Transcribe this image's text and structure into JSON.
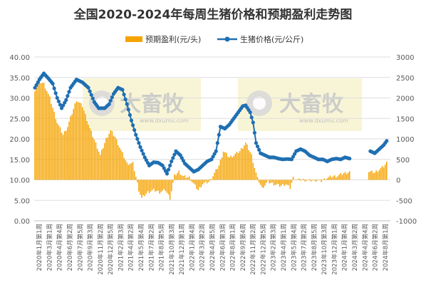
{
  "chart_data": {
    "type": "bar+line",
    "title": "全国2020-2024年每周生猪价格和预期盈利走势图",
    "legend": {
      "placement": "top-center",
      "items": [
        "预期盈利(元/头)",
        "生猪价格(元/公斤)"
      ]
    },
    "y_left": {
      "ticks": [
        "0.00",
        "5.00",
        "10.00",
        "15.00",
        "20.00",
        "25.00",
        "30.00",
        "35.00",
        "40.00"
      ],
      "range": [
        0,
        40
      ]
    },
    "y_right": {
      "ticks": [
        "-1000",
        "-500",
        "0",
        "500",
        "1000",
        "1500",
        "2000",
        "2500",
        "3000"
      ],
      "range": [
        -1000,
        3000
      ]
    },
    "x_tick_labels": [
      "2020年1月第1周",
      "2020年3月第1周",
      "2020年4月第4周",
      "2020年6月第2周",
      "2020年7月第5周",
      "2020年9月第3周",
      "2020年11月第2周",
      "2020年12月第5周",
      "2021年2月第3周",
      "2021年4月第2周",
      "2021年5月第4周",
      "2021年7月第2周",
      "2021年8月第5周",
      "2021年10月第3周",
      "2021年12月第1周",
      "2022年1月第4周",
      "2022年3月第2周",
      "2022年4月第5周",
      "2022年6月第3周",
      "2022年8月第1周",
      "2022年9月第4周",
      "2022年11月第2周",
      "2022年12月第5周",
      "2023年2月第3周",
      "2023年4月第1周",
      "2023年5月第4周",
      "2023年7月第2周",
      "2023年8月第5周",
      "2023年10月第3周",
      "2023年12月第1周",
      "2024年1月第4周",
      "2024年3月第2周",
      "2024年4月第4周",
      "2024年6月第2周",
      "2024年8月第1周"
    ],
    "weeks_total": 240,
    "series": [
      {
        "name": "预期盈利(元/头)",
        "type": "bar",
        "axis": "right",
        "color": "#F5A300",
        "knots": [
          [
            0,
            2200
          ],
          [
            3,
            2400
          ],
          [
            6,
            2350
          ],
          [
            10,
            2000
          ],
          [
            15,
            1400
          ],
          [
            19,
            1100
          ],
          [
            22,
            1300
          ],
          [
            28,
            1950
          ],
          [
            32,
            1800
          ],
          [
            37,
            1250
          ],
          [
            42,
            800
          ],
          [
            44,
            600
          ],
          [
            48,
            1000
          ],
          [
            51,
            1200
          ],
          [
            54,
            1050
          ],
          [
            57,
            800
          ],
          [
            62,
            400
          ],
          [
            66,
            400
          ],
          [
            70,
            -250
          ],
          [
            72,
            -450
          ],
          [
            76,
            -300
          ],
          [
            80,
            -250
          ],
          [
            84,
            -300
          ],
          [
            88,
            -250
          ],
          [
            91,
            -450
          ],
          [
            94,
            100
          ],
          [
            97,
            200
          ],
          [
            100,
            80
          ],
          [
            104,
            60
          ],
          [
            107,
            -100
          ],
          [
            110,
            -250
          ],
          [
            113,
            -100
          ],
          [
            117,
            -50
          ],
          [
            120,
            100
          ],
          [
            124,
            350
          ],
          [
            127,
            700
          ],
          [
            131,
            550
          ],
          [
            134,
            600
          ],
          [
            138,
            700
          ],
          [
            142,
            900
          ],
          [
            146,
            600
          ],
          [
            148,
            300
          ],
          [
            150,
            30
          ],
          [
            153,
            -200
          ],
          [
            157,
            -50
          ],
          [
            161,
            -100
          ],
          [
            165,
            -150
          ],
          [
            169,
            -100
          ],
          [
            172,
            -200
          ],
          [
            174,
            50
          ],
          [
            177,
            0
          ],
          [
            181,
            0
          ],
          [
            185,
            -20
          ],
          [
            189,
            -10
          ],
          [
            193,
            -30
          ],
          [
            197,
            50
          ],
          [
            200,
            80
          ],
          [
            204,
            100
          ],
          [
            208,
            160
          ],
          [
            212,
            200
          ],
          [
            216,
            null
          ],
          [
            224,
            null
          ],
          [
            225,
            200
          ],
          [
            229,
            180
          ],
          [
            232,
            250
          ],
          [
            235,
            330
          ],
          [
            237,
            420
          ]
        ]
      },
      {
        "name": "生猪价格(元/公斤)",
        "type": "line",
        "axis": "left",
        "color": "#1F6FB2",
        "knots": [
          [
            0,
            32.5
          ],
          [
            3,
            34.5
          ],
          [
            6,
            36
          ],
          [
            9,
            34.8
          ],
          [
            12,
            33.5
          ],
          [
            15,
            30
          ],
          [
            18,
            27.5
          ],
          [
            21,
            29.5
          ],
          [
            24,
            32.5
          ],
          [
            28,
            34.5
          ],
          [
            32,
            33.8
          ],
          [
            36,
            32.5
          ],
          [
            40,
            29
          ],
          [
            43,
            27.5
          ],
          [
            47,
            27.5
          ],
          [
            50,
            28.5
          ],
          [
            53,
            31
          ],
          [
            56,
            32.5
          ],
          [
            59,
            32
          ],
          [
            62,
            28.5
          ],
          [
            65,
            24.5
          ],
          [
            68,
            21
          ],
          [
            71,
            18
          ],
          [
            74,
            15.5
          ],
          [
            77,
            13.5
          ],
          [
            80,
            14.3
          ],
          [
            83,
            14.2
          ],
          [
            86,
            13.5
          ],
          [
            89,
            11.5
          ],
          [
            92,
            14.5
          ],
          [
            95,
            17
          ],
          [
            98,
            16
          ],
          [
            101,
            14
          ],
          [
            104,
            13
          ],
          [
            107,
            12
          ],
          [
            110,
            12.5
          ],
          [
            113,
            13.5
          ],
          [
            116,
            14.5
          ],
          [
            119,
            15
          ],
          [
            122,
            17
          ],
          [
            125,
            23
          ],
          [
            128,
            22.5
          ],
          [
            131,
            23.5
          ],
          [
            134,
            25
          ],
          [
            137,
            26.5
          ],
          [
            140,
            28
          ],
          [
            142,
            28.2
          ],
          [
            145,
            26.5
          ],
          [
            147,
            24
          ],
          [
            149,
            19
          ],
          [
            152,
            16.5
          ],
          [
            155,
            16
          ],
          [
            158,
            15.5
          ],
          [
            161,
            15.5
          ],
          [
            164,
            15.2
          ],
          [
            167,
            15
          ],
          [
            170,
            15.1
          ],
          [
            173,
            15
          ],
          [
            176,
            17
          ],
          [
            179,
            17.5
          ],
          [
            182,
            17
          ],
          [
            185,
            16
          ],
          [
            188,
            15.5
          ],
          [
            191,
            15
          ],
          [
            194,
            15
          ],
          [
            197,
            14.5
          ],
          [
            200,
            15
          ],
          [
            203,
            15.2
          ],
          [
            206,
            15
          ],
          [
            209,
            15.5
          ],
          [
            212,
            15.2
          ],
          [
            216,
            null
          ],
          [
            224,
            null
          ],
          [
            226,
            17
          ],
          [
            229,
            16.5
          ],
          [
            232,
            17.5
          ],
          [
            235,
            18.5
          ],
          [
            237,
            19.5
          ]
        ]
      }
    ]
  },
  "watermark": {
    "brand": "大畜牧",
    "url": "www.dxumu.com"
  }
}
